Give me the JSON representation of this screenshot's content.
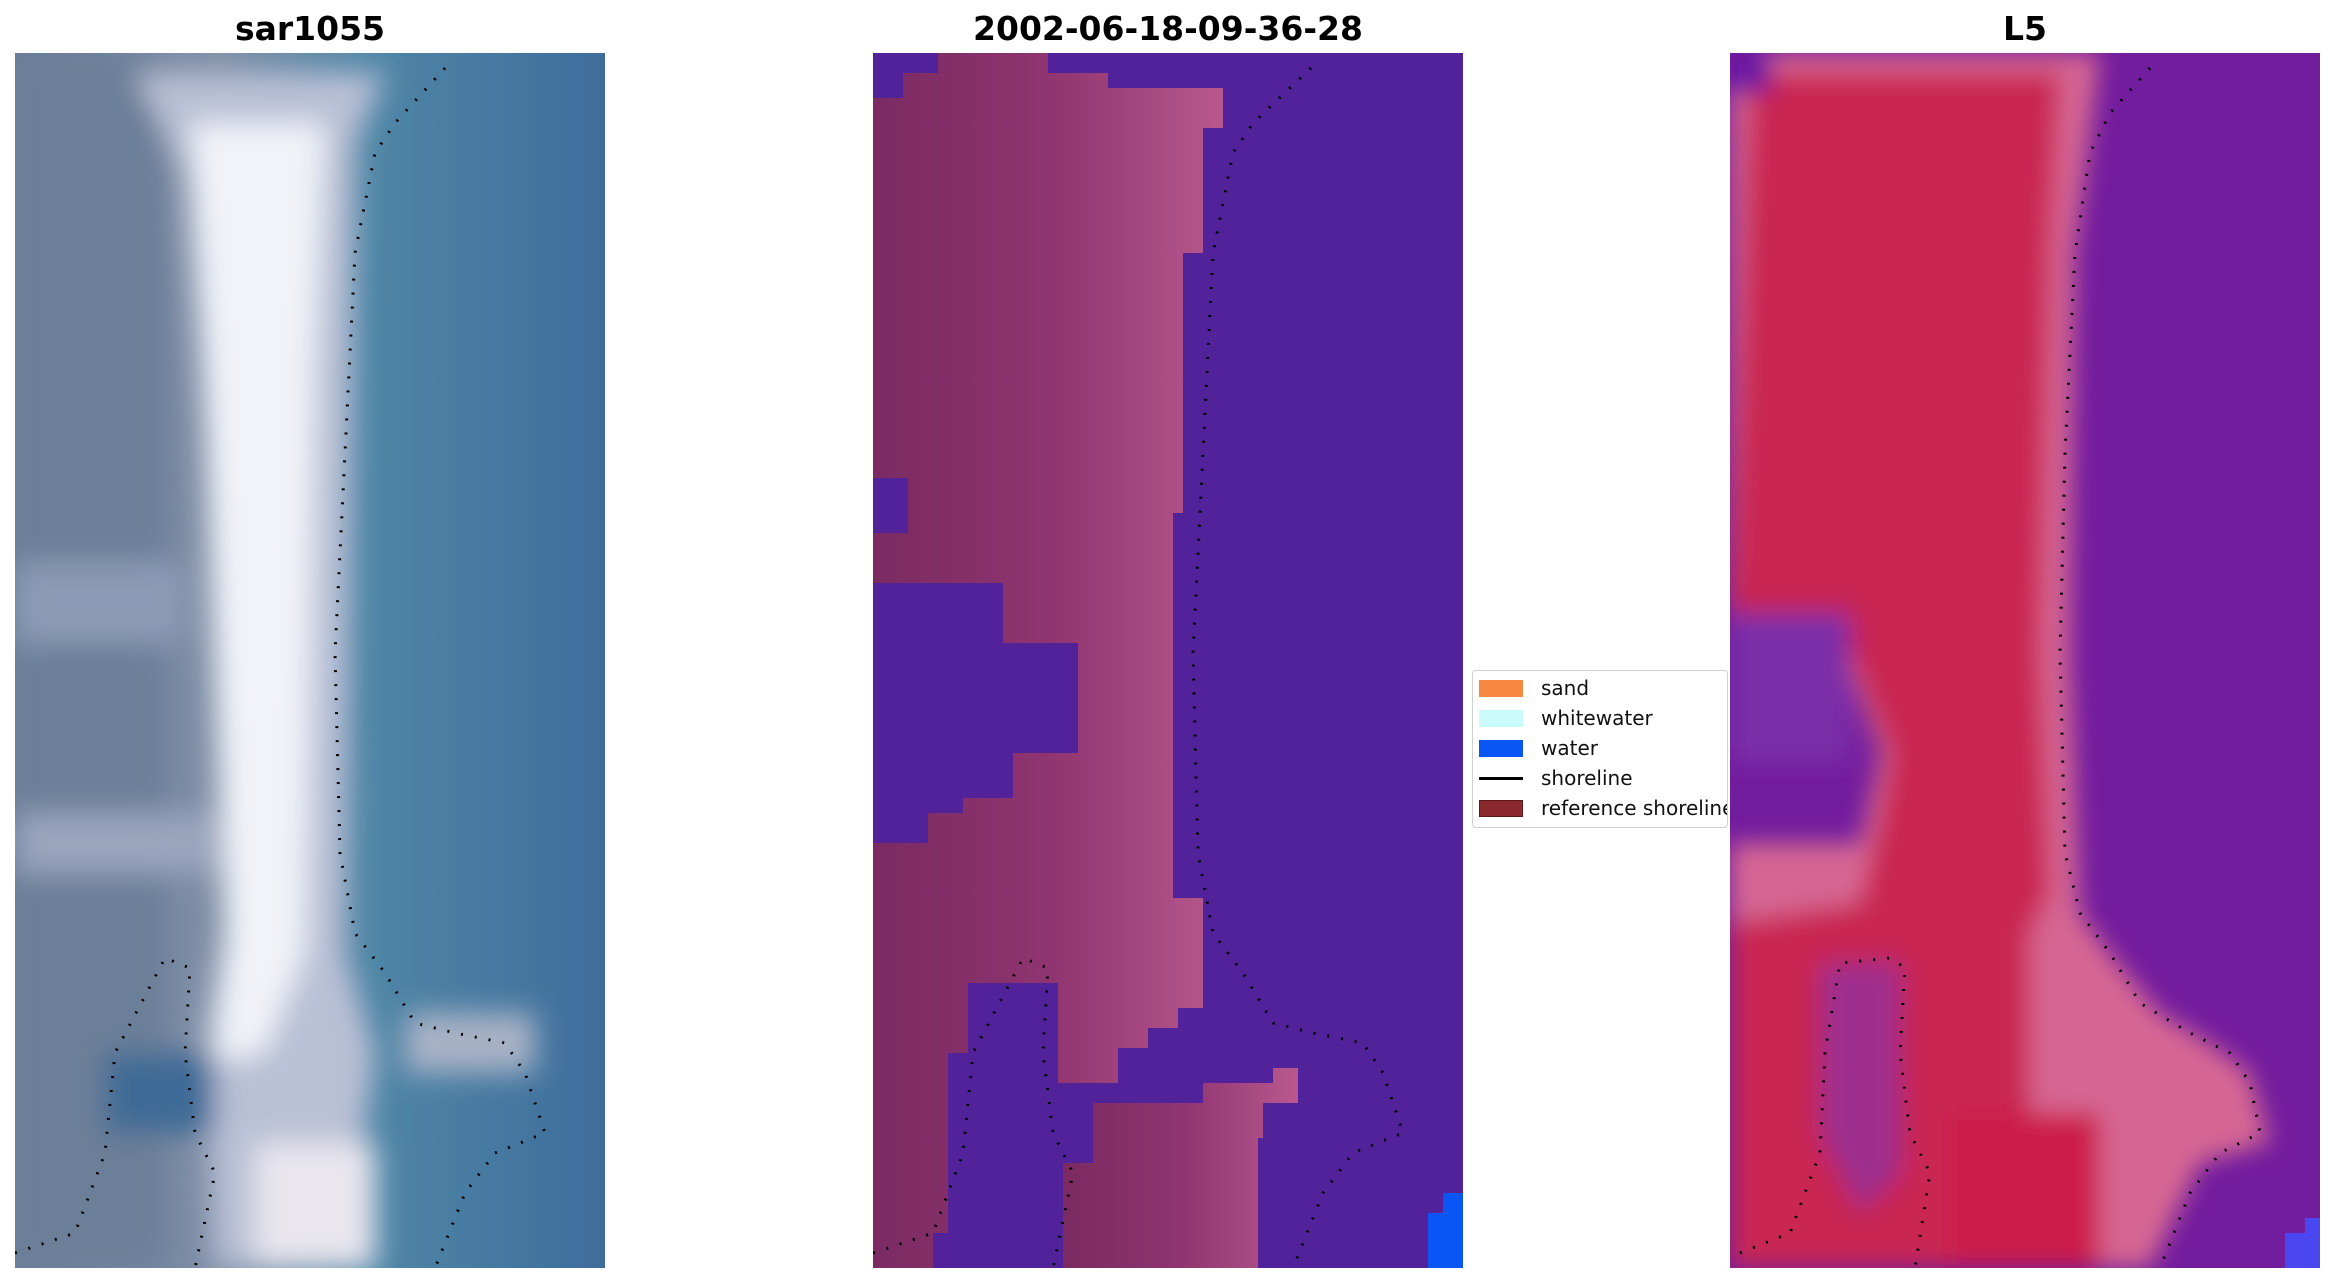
{
  "panels": [
    {
      "title": "sar1055"
    },
    {
      "title": "2002-06-18-09-36-28"
    },
    {
      "title": "L5"
    }
  ],
  "legend": {
    "items": [
      {
        "label": "sand",
        "color": "#f7883f",
        "kind": "patch"
      },
      {
        "label": "whitewater",
        "color": "#c9fbfb",
        "kind": "patch"
      },
      {
        "label": "water",
        "color": "#0a56f5",
        "kind": "patch"
      },
      {
        "label": "shoreline",
        "color": "#000000",
        "kind": "line"
      },
      {
        "label": "reference shoreline",
        "color": "#8a2a2e",
        "kind": "patch"
      }
    ]
  },
  "colors": {
    "rgb_water": "#3f6d9a",
    "rgb_sand": "#e9eef4",
    "class_water": "#52239a",
    "class_land": "#9c3c78",
    "class_water_pixel": "#0a56f5",
    "index_land": "#cc2150",
    "index_water": "#6c1b9c",
    "index_water_pixel": "#4a47f0"
  }
}
